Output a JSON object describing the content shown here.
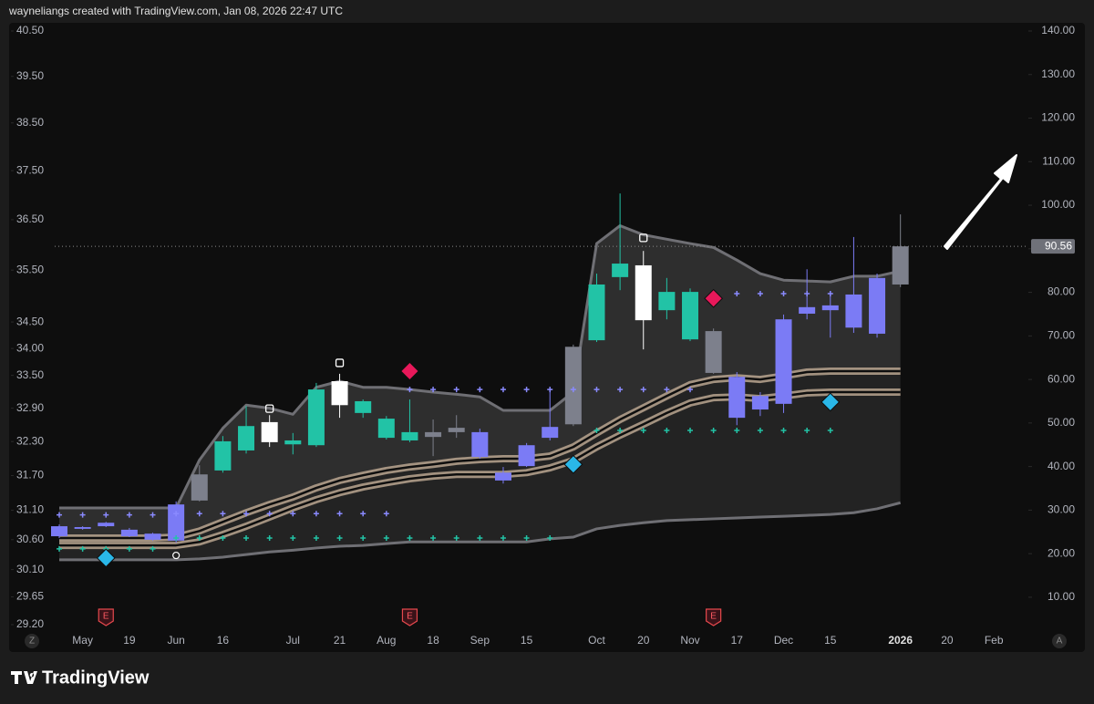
{
  "header": "wayneliangs created with TradingView.com, Jan 08, 2026 22:47 UTC",
  "footer": "TradingView",
  "axis_buttons": [
    "Z",
    "A"
  ],
  "chart_data": {
    "type": "candlestick",
    "categories": [
      null,
      "May",
      null,
      "19",
      null,
      "Jun",
      null,
      "16",
      null,
      null,
      "Jul",
      null,
      "21",
      null,
      "Aug",
      null,
      "18",
      null,
      "Sep",
      null,
      "15",
      null,
      null,
      "Oct",
      null,
      "20",
      null,
      "Nov",
      null,
      "17",
      null,
      "Dec",
      null,
      "15",
      null,
      null,
      "2026",
      null,
      "20",
      null,
      "Feb"
    ],
    "open": [
      24.0,
      25.7,
      26.3,
      25.5,
      24.6,
      23.0,
      32.2,
      39.1,
      43.7,
      50.2,
      45.1,
      44.9,
      54.1,
      55.0,
      51.0,
      46.0,
      46.8,
      47.9,
      47.9,
      38.6,
      40.1,
      46.6,
      49.7,
      69.0,
      83.5,
      86.2,
      75.9,
      80.1,
      71.1,
      60.6,
      53.1,
      54.4,
      75.1,
      75.9,
      71.9,
      70.5,
      81.8,
      null,
      null,
      null,
      null
    ],
    "high": [
      26.7,
      26.3,
      27.3,
      25.9,
      24.8,
      32.0,
      40.3,
      47.0,
      53.9,
      51.8,
      47.7,
      59.2,
      61.3,
      55.4,
      51.6,
      55.4,
      50.8,
      51.8,
      48.7,
      39.9,
      45.4,
      57.1,
      68.0,
      84.3,
      102.7,
      89.5,
      83.3,
      80.9,
      71.7,
      61.7,
      57.1,
      74.9,
      85.3,
      80.1,
      92.7,
      84.3,
      97.9,
      null,
      null,
      null,
      null
    ],
    "low": [
      23.6,
      25.5,
      26.1,
      23.8,
      23.0,
      22.5,
      32.0,
      38.6,
      43.0,
      44.5,
      42.8,
      44.5,
      51.2,
      51.2,
      46.2,
      45.6,
      42.4,
      46.6,
      41.8,
      36.1,
      39.9,
      46.0,
      49.3,
      68.6,
      80.5,
      66.9,
      73.8,
      68.8,
      61.3,
      49.5,
      51.6,
      52.3,
      73.8,
      69.6,
      70.7,
      69.6,
      81.2,
      null,
      null,
      null,
      null
    ],
    "close": [
      26.3,
      26.1,
      27.1,
      24.0,
      23.2,
      31.3,
      38.2,
      45.8,
      49.3,
      45.6,
      46.0,
      57.7,
      59.6,
      52.3,
      46.6,
      47.9,
      47.9,
      48.9,
      42.2,
      36.8,
      44.9,
      49.1,
      67.5,
      81.8,
      86.6,
      73.6,
      80.1,
      69.2,
      61.5,
      51.2,
      56.2,
      73.8,
      76.6,
      77.0,
      79.5,
      83.3,
      90.56,
      null,
      null,
      null,
      null
    ],
    "colors": [
      "#7b7bf5",
      "#7b7bf5",
      "#7b7bf5",
      "#7b7bf5",
      "#7b7bf5",
      "#7b7bf5",
      "#7d808c",
      "#22c3a6",
      "#22c3a6",
      "#ffffff",
      "#22c3a6",
      "#22c3a6",
      "#ffffff",
      "#22c3a6",
      "#22c3a6",
      "#22c3a6",
      "#7d808c",
      "#7d808c",
      "#7b7bf5",
      "#7b7bf5",
      "#7b7bf5",
      "#7b7bf5",
      "#7d808c",
      "#22c3a6",
      "#22c3a6",
      "#ffffff",
      "#22c3a6",
      "#22c3a6",
      "#7d808c",
      "#7b7bf5",
      "#7b7bf5",
      "#7b7bf5",
      "#7b7bf5",
      "#7b7bf5",
      "#7b7bf5",
      "#7b7bf5",
      "#7d808c",
      null,
      null,
      null,
      null
    ],
    "overlays": [
      {
        "color": "#6f6f74",
        "style": "single",
        "values": [
          30.5,
          30.5,
          30.5,
          30.5,
          30.5,
          30.5,
          41.5,
          48.8,
          54.1,
          53.4,
          52.0,
          58.2,
          59.6,
          58.2,
          58.2,
          57.7,
          57.1,
          56.6,
          56.0,
          52.9,
          52.9,
          52.9,
          57.1,
          91.2,
          95.3,
          93.2,
          92.2,
          91.2,
          90.3,
          87.4,
          84.3,
          82.8,
          82.6,
          82.4,
          83.7,
          83.7,
          84.9,
          null,
          null,
          null,
          null
        ]
      },
      {
        "color": "#b9a48f",
        "style": "double",
        "values": [
          23.6,
          23.6,
          23.6,
          23.6,
          23.6,
          23.8,
          25.2,
          27.3,
          29.4,
          31.3,
          33.0,
          35.1,
          36.8,
          38.0,
          39.1,
          39.9,
          40.5,
          41.2,
          41.6,
          41.8,
          41.8,
          42.4,
          44.5,
          47.7,
          50.8,
          53.5,
          56.2,
          58.8,
          60.0,
          60.4,
          60.0,
          60.8,
          61.7,
          61.9,
          61.9,
          61.9,
          61.9,
          null,
          null,
          null,
          null
        ]
      },
      {
        "color": "#b9a48f",
        "style": "double",
        "values": [
          21.9,
          21.9,
          21.9,
          21.9,
          21.9,
          21.9,
          22.7,
          24.4,
          26.3,
          28.4,
          30.5,
          32.4,
          34.0,
          35.3,
          36.3,
          37.2,
          37.8,
          38.2,
          38.2,
          38.2,
          38.6,
          39.7,
          41.4,
          44.5,
          47.2,
          49.7,
          52.3,
          54.6,
          55.8,
          56.0,
          55.6,
          56.2,
          56.9,
          57.1,
          57.1,
          57.1,
          57.1,
          null,
          null,
          null,
          null
        ]
      },
      {
        "color": "#6f6f74",
        "style": "single",
        "values": [
          18.6,
          18.6,
          18.6,
          18.6,
          18.6,
          18.6,
          18.8,
          19.2,
          19.8,
          20.4,
          20.8,
          21.3,
          21.7,
          21.9,
          22.3,
          22.7,
          22.7,
          22.7,
          22.7,
          22.7,
          22.7,
          23.4,
          23.8,
          25.7,
          26.5,
          27.1,
          27.6,
          27.8,
          28.0,
          28.2,
          28.4,
          28.6,
          28.8,
          29.0,
          29.4,
          30.3,
          31.7,
          null,
          null,
          null,
          null
        ]
      }
    ],
    "band_fill": true,
    "markers": [
      {
        "symbol": "plus",
        "color": "#8a8aff",
        "values": [
          28.9,
          28.9,
          28.9,
          28.9,
          28.9,
          29.2,
          29.2,
          29.2,
          29.2,
          29.2,
          29.2,
          29.2,
          29.2,
          29.2,
          29.2,
          57.7,
          57.7,
          57.7,
          57.7,
          57.7,
          57.7,
          57.7,
          57.7,
          57.7,
          57.7,
          57.7,
          57.7,
          57.7,
          null,
          79.7,
          79.7,
          79.7,
          79.7,
          79.7,
          null,
          null,
          null,
          null,
          null,
          null,
          null
        ]
      },
      {
        "symbol": "plus",
        "color": "#22c3a6",
        "values": [
          21.1,
          21.1,
          21.1,
          21.1,
          21.1,
          23.6,
          23.6,
          23.6,
          23.6,
          23.6,
          23.6,
          23.6,
          23.6,
          23.6,
          23.6,
          23.6,
          23.6,
          23.6,
          23.6,
          23.6,
          23.6,
          23.6,
          null,
          48.3,
          48.3,
          48.3,
          48.3,
          48.3,
          48.3,
          48.3,
          48.3,
          48.3,
          48.3,
          48.3,
          null,
          null,
          null,
          null,
          null,
          null,
          null
        ]
      },
      {
        "symbol": "diamond",
        "color": "#2ab7e8",
        "values": [
          null,
          null,
          19.0,
          null,
          null,
          null,
          null,
          null,
          null,
          null,
          null,
          null,
          null,
          null,
          null,
          null,
          null,
          null,
          null,
          null,
          null,
          null,
          40.5,
          null,
          null,
          null,
          null,
          null,
          null,
          null,
          null,
          null,
          null,
          54.8,
          null,
          null,
          null,
          null,
          null,
          null,
          null
        ]
      },
      {
        "symbol": "diamond",
        "color": "#e8185a",
        "values": [
          null,
          null,
          null,
          null,
          null,
          null,
          null,
          null,
          null,
          null,
          null,
          null,
          null,
          null,
          null,
          61.9,
          null,
          null,
          null,
          null,
          null,
          null,
          null,
          null,
          null,
          null,
          null,
          null,
          78.6,
          null,
          null,
          null,
          null,
          null,
          null,
          null,
          null,
          null,
          null,
          null,
          null
        ]
      },
      {
        "symbol": "square",
        "color": "#ffffff",
        "values": [
          null,
          null,
          null,
          null,
          null,
          null,
          null,
          null,
          null,
          53.3,
          null,
          null,
          63.8,
          null,
          null,
          null,
          null,
          null,
          null,
          null,
          null,
          null,
          null,
          null,
          null,
          92.5,
          null,
          null,
          null,
          null,
          null,
          null,
          null,
          null,
          null,
          null,
          null,
          null,
          null,
          null,
          null
        ]
      },
      {
        "symbol": "circle",
        "color": "#ffffff",
        "values": [
          null,
          null,
          null,
          null,
          null,
          19.6,
          null,
          null,
          null,
          null,
          null,
          null,
          null,
          null,
          null,
          null,
          null,
          null,
          null,
          null,
          null,
          null,
          null,
          null,
          null,
          null,
          null,
          null,
          null,
          null,
          null,
          null,
          null,
          null,
          null,
          null,
          null,
          null,
          null,
          null,
          null
        ]
      }
    ],
    "earnings": [
      null,
      null,
      "E",
      null,
      null,
      null,
      null,
      null,
      null,
      null,
      null,
      null,
      null,
      null,
      null,
      "E",
      null,
      null,
      null,
      null,
      null,
      null,
      null,
      null,
      null,
      null,
      null,
      null,
      "E",
      null,
      null,
      null,
      null,
      null,
      null,
      null,
      null,
      null,
      null,
      null,
      null
    ],
    "last_price": 90.56,
    "ylim": [
      3.7,
      140
    ],
    "yticks": [
      {
        "value": 10,
        "label": "10.00"
      },
      {
        "value": 20,
        "label": "20.00"
      },
      {
        "value": 30,
        "label": "30.00"
      },
      {
        "value": 40,
        "label": "40.00"
      },
      {
        "value": 50,
        "label": "50.00"
      },
      {
        "value": 60,
        "label": "60.00"
      },
      {
        "value": 70,
        "label": "70.00"
      },
      {
        "value": 80,
        "label": "80.00"
      },
      {
        "value": 90,
        "label": "90.00"
      },
      {
        "value": 100,
        "label": "100.00"
      },
      {
        "value": 110,
        "label": "110.00"
      },
      {
        "value": 120,
        "label": "120.00"
      },
      {
        "value": 130,
        "label": "130.00"
      },
      {
        "value": 140,
        "label": "140.00"
      }
    ],
    "y2lim": [
      29.2,
      40.5
    ],
    "y2log": true,
    "y2ticks": [
      {
        "value": 29.2,
        "label": "29.20"
      },
      {
        "value": 29.65,
        "label": "29.65"
      },
      {
        "value": 30.1,
        "label": "30.10"
      },
      {
        "value": 30.6,
        "label": "30.60"
      },
      {
        "value": 31.1,
        "label": "31.10"
      },
      {
        "value": 31.7,
        "label": "31.70"
      },
      {
        "value": 32.3,
        "label": "32.30"
      },
      {
        "value": 32.9,
        "label": "32.90"
      },
      {
        "value": 33.5,
        "label": "33.50"
      },
      {
        "value": 34,
        "label": "34.00"
      },
      {
        "value": 34.5,
        "label": "34.50"
      },
      {
        "value": 35.5,
        "label": "35.50"
      },
      {
        "value": 36.5,
        "label": "36.50"
      },
      {
        "value": 37.5,
        "label": "37.50"
      },
      {
        "value": 38.5,
        "label": "38.50"
      },
      {
        "value": 39.5,
        "label": "39.50"
      },
      {
        "value": 40.5,
        "label": "40.50"
      }
    ]
  }
}
